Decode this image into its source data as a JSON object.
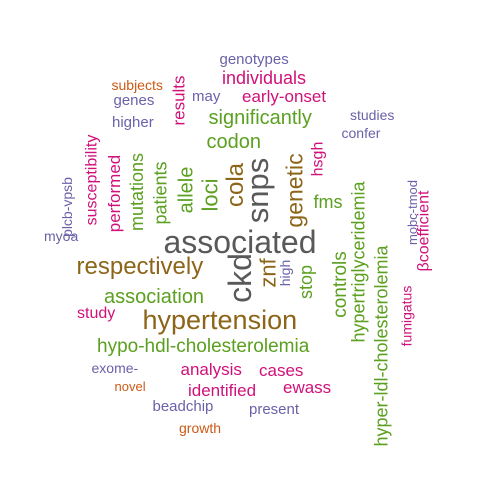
{
  "colors": {
    "gray": "#595959",
    "brown": "#8c6519",
    "green": "#5ba020",
    "magenta": "#d0117a",
    "purple": "#6a62a8",
    "orange": "#cc5a14"
  },
  "words": [
    {
      "text": "associated",
      "color": "gray"
    },
    {
      "text": "snps",
      "color": "gray"
    },
    {
      "text": "ckd",
      "color": "gray"
    },
    {
      "text": "hypertension",
      "color": "brown"
    },
    {
      "text": "respectively",
      "color": "brown"
    },
    {
      "text": "cola",
      "color": "brown"
    },
    {
      "text": "genetic",
      "color": "brown"
    },
    {
      "text": "znf",
      "color": "brown"
    },
    {
      "text": "association",
      "color": "green"
    },
    {
      "text": "loci",
      "color": "green"
    },
    {
      "text": "allele",
      "color": "green"
    },
    {
      "text": "codon",
      "color": "green"
    },
    {
      "text": "significantly",
      "color": "green"
    },
    {
      "text": "mutations",
      "color": "green"
    },
    {
      "text": "patients",
      "color": "green"
    },
    {
      "text": "hypo‐hdl‐cholesterolemia",
      "color": "green"
    },
    {
      "text": "controls",
      "color": "green"
    },
    {
      "text": "hypertriglyceridemia",
      "color": "green"
    },
    {
      "text": "hyper‐ldl‐cholesterolemia",
      "color": "green"
    },
    {
      "text": "stop",
      "color": "green"
    },
    {
      "text": "fms",
      "color": "green"
    },
    {
      "text": "performed",
      "color": "magenta"
    },
    {
      "text": "susceptibility",
      "color": "magenta"
    },
    {
      "text": "results",
      "color": "magenta"
    },
    {
      "text": "individuals",
      "color": "magenta"
    },
    {
      "text": "early‐onset",
      "color": "magenta"
    },
    {
      "text": "hsgh",
      "color": "magenta"
    },
    {
      "text": "study",
      "color": "magenta"
    },
    {
      "text": "analysis",
      "color": "magenta"
    },
    {
      "text": "cases",
      "color": "magenta"
    },
    {
      "text": "identified",
      "color": "magenta"
    },
    {
      "text": "ewass",
      "color": "magenta"
    },
    {
      "text": "fumigatus",
      "color": "magenta"
    },
    {
      "text": "βcoefficient",
      "color": "magenta"
    },
    {
      "text": "genotypes",
      "color": "purple"
    },
    {
      "text": "may",
      "color": "purple"
    },
    {
      "text": "genes",
      "color": "purple"
    },
    {
      "text": "higher",
      "color": "purple"
    },
    {
      "text": "studies",
      "color": "purple"
    },
    {
      "text": "confer",
      "color": "purple"
    },
    {
      "text": "plcb‐vpsb",
      "color": "purple"
    },
    {
      "text": "myoa",
      "color": "purple"
    },
    {
      "text": "high",
      "color": "purple"
    },
    {
      "text": "mobc‐tmod",
      "color": "purple"
    },
    {
      "text": "exome‐",
      "color": "purple"
    },
    {
      "text": "beadchip",
      "color": "purple"
    },
    {
      "text": "present",
      "color": "purple"
    },
    {
      "text": "subjects",
      "color": "orange"
    },
    {
      "text": "novel",
      "color": "orange"
    },
    {
      "text": "growth",
      "color": "orange"
    }
  ]
}
